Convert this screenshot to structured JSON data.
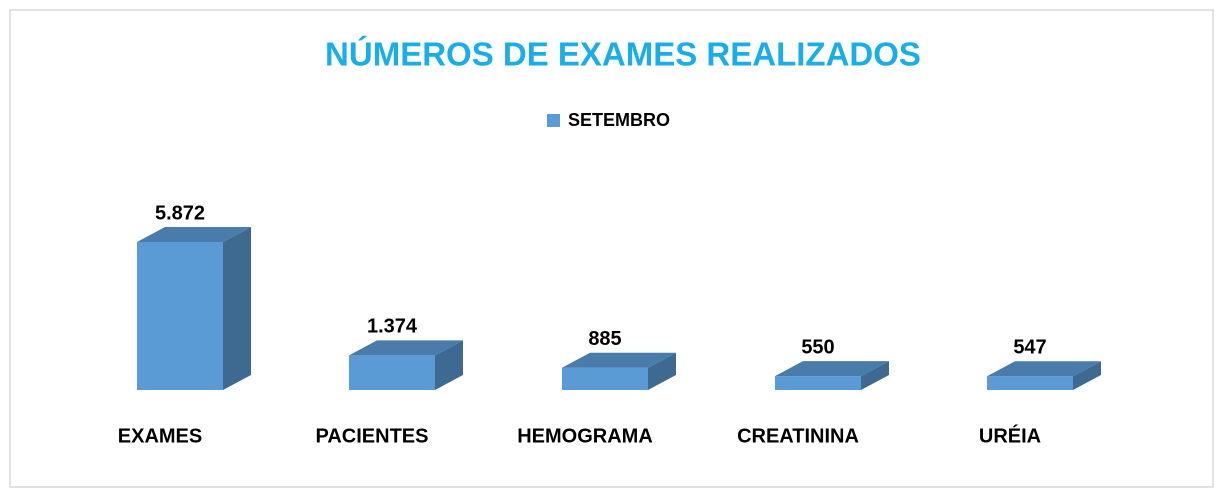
{
  "chart_data": {
    "type": "bar3d",
    "title": "NÚMEROS DE EXAMES REALIZADOS",
    "categories": [
      "EXAMES",
      "PACIENTES",
      "HEMOGRAMA",
      "CREATININA",
      "URÉIA"
    ],
    "series": [
      {
        "name": "SETEMBRO",
        "color": "#5b9bd5",
        "values": [
          5872,
          1374,
          885,
          550,
          547
        ],
        "value_labels": [
          "5.872",
          "1.374",
          "885",
          "550",
          "547"
        ]
      }
    ],
    "legend": "top"
  }
}
